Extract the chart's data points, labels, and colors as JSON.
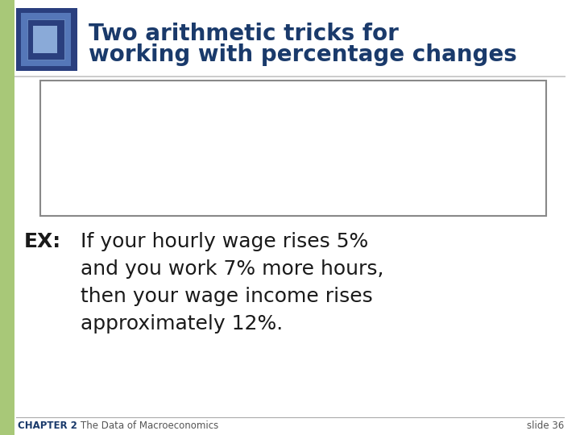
{
  "title_line1": "Two arithmetic tricks for",
  "title_line2": "working with percentage changes",
  "title_color": "#1a3a6b",
  "bg_color": "#ffffff",
  "left_bar_color": "#a8c878",
  "green_color": "#00a550",
  "dark_blue": "#1a3a6b",
  "black_color": "#1a1a1a",
  "footer_chapter": "CHAPTER 2",
  "footer_title": "The Data of Macroeconomics",
  "footer_slide": "slide 36"
}
